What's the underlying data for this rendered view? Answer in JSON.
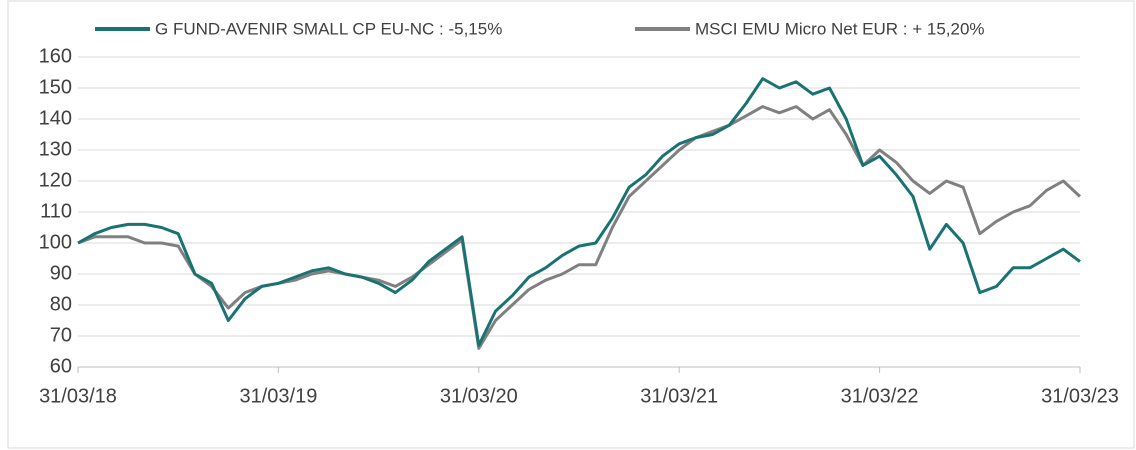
{
  "chart_data": {
    "type": "line",
    "x": [
      "2018-03",
      "2018-04",
      "2018-05",
      "2018-06",
      "2018-07",
      "2018-08",
      "2018-09",
      "2018-10",
      "2018-11",
      "2018-12",
      "2019-01",
      "2019-02",
      "2019-03",
      "2019-04",
      "2019-05",
      "2019-06",
      "2019-07",
      "2019-08",
      "2019-09",
      "2019-10",
      "2019-11",
      "2019-12",
      "2020-01",
      "2020-02",
      "2020-03",
      "2020-04",
      "2020-05",
      "2020-06",
      "2020-07",
      "2020-08",
      "2020-09",
      "2020-10",
      "2020-11",
      "2020-12",
      "2021-01",
      "2021-02",
      "2021-03",
      "2021-04",
      "2021-05",
      "2021-06",
      "2021-07",
      "2021-08",
      "2021-09",
      "2021-10",
      "2021-11",
      "2021-12",
      "2022-01",
      "2022-02",
      "2022-03",
      "2022-04",
      "2022-05",
      "2022-06",
      "2022-07",
      "2022-08",
      "2022-09",
      "2022-10",
      "2022-11",
      "2022-12",
      "2023-01",
      "2023-02",
      "2023-03"
    ],
    "series": [
      {
        "name": "G FUND-AVENIR SMALL CP EU-NC : -5,15%",
        "color": "#1a7373",
        "values": [
          100,
          103,
          105,
          106,
          106,
          105,
          103,
          90,
          87,
          75,
          82,
          86,
          87,
          89,
          91,
          92,
          90,
          89,
          87,
          84,
          88,
          94,
          98,
          102,
          67,
          78,
          83,
          89,
          92,
          96,
          99,
          100,
          108,
          118,
          122,
          128,
          132,
          134,
          135,
          138,
          145,
          153,
          150,
          152,
          148,
          150,
          140,
          125,
          128,
          122,
          115,
          98,
          106,
          100,
          84,
          86,
          92,
          92,
          95,
          98,
          94
        ]
      },
      {
        "name": "MSCI EMU Micro Net EUR : + 15,20%",
        "color": "#808080",
        "values": [
          100,
          102,
          102,
          102,
          100,
          100,
          99,
          90,
          86,
          79,
          84,
          86,
          87,
          88,
          90,
          91,
          90,
          89,
          88,
          86,
          89,
          93,
          97,
          101,
          66,
          75,
          80,
          85,
          88,
          90,
          93,
          93,
          105,
          115,
          120,
          125,
          130,
          134,
          136,
          138,
          141,
          144,
          142,
          144,
          140,
          143,
          135,
          125,
          130,
          126,
          120,
          116,
          120,
          118,
          103,
          107,
          110,
          112,
          117,
          120,
          115
        ]
      }
    ],
    "xlim": [
      "2018-03",
      "2023-03"
    ],
    "xticks": [
      {
        "value": "2018-03",
        "label": "31/03/18"
      },
      {
        "value": "2019-03",
        "label": "31/03/19"
      },
      {
        "value": "2020-03",
        "label": "31/03/20"
      },
      {
        "value": "2021-03",
        "label": "31/03/21"
      },
      {
        "value": "2022-03",
        "label": "31/03/22"
      },
      {
        "value": "2023-03",
        "label": "31/03/23"
      }
    ],
    "ylim": [
      60,
      160
    ],
    "yticks": [
      60,
      70,
      80,
      90,
      100,
      110,
      120,
      130,
      140,
      150,
      160
    ],
    "grid": true,
    "legend": "top"
  }
}
